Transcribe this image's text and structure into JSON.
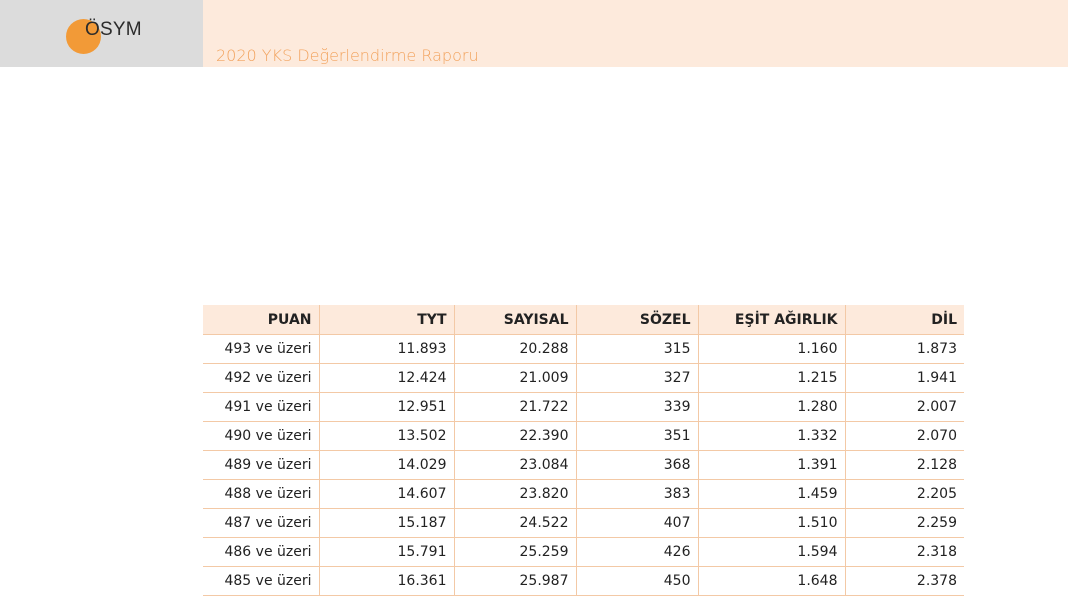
{
  "header": {
    "logo_text": "ÖSYM",
    "report_title": "2020 YKS Değerlendirme Raporu",
    "accent_color": "#f29a37"
  },
  "table": {
    "columns": [
      "PUAN",
      "TYT",
      "SAYISAL",
      "SÖZEL",
      "EŞİT AĞIRLIK",
      "DİL"
    ],
    "rows": [
      [
        "493 ve üzeri",
        "11.893",
        "20.288",
        "315",
        "1.160",
        "1.873"
      ],
      [
        "492 ve üzeri",
        "12.424",
        "21.009",
        "327",
        "1.215",
        "1.941"
      ],
      [
        "491 ve üzeri",
        "12.951",
        "21.722",
        "339",
        "1.280",
        "2.007"
      ],
      [
        "490 ve üzeri",
        "13.502",
        "22.390",
        "351",
        "1.332",
        "2.070"
      ],
      [
        "489 ve üzeri",
        "14.029",
        "23.084",
        "368",
        "1.391",
        "2.128"
      ],
      [
        "488 ve üzeri",
        "14.607",
        "23.820",
        "383",
        "1.459",
        "2.205"
      ],
      [
        "487 ve üzeri",
        "15.187",
        "24.522",
        "407",
        "1.510",
        "2.259"
      ],
      [
        "486 ve üzeri",
        "15.791",
        "25.259",
        "426",
        "1.594",
        "2.318"
      ],
      [
        "485 ve üzeri",
        "16.361",
        "25.987",
        "450",
        "1.648",
        "2.378"
      ]
    ]
  }
}
